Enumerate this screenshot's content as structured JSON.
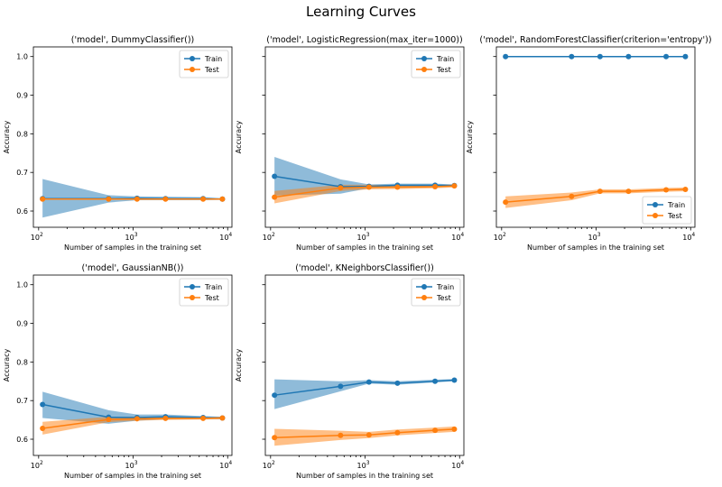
{
  "suptitle": "Learning Curves",
  "colors": {
    "train": "#1f77b4",
    "test": "#ff7f0e"
  },
  "chart_data": [
    {
      "type": "line",
      "title": "('model', DummyClassifier())",
      "xlabel": "Number of samples in the training set",
      "ylabel": "Accuracy",
      "xscale": "log",
      "xlim": [
        88,
        11100
      ],
      "ylim": [
        0.558,
        1.025
      ],
      "xticks": [
        100,
        1000,
        10000
      ],
      "xtick_labels": [
        "10",
        "10",
        "10"
      ],
      "xtick_exps": [
        "2",
        "3",
        "4"
      ],
      "yticks": [
        0.6,
        0.7,
        0.8,
        0.9,
        1.0
      ],
      "ytick_labels": [
        "0.6",
        "0.7",
        "0.8",
        "0.9",
        "1.0"
      ],
      "show_ytick_labels": true,
      "legend": "top-right",
      "legend_labels": [
        "Train",
        "Test"
      ],
      "x": [
        110,
        550,
        1100,
        2200,
        5500,
        8800
      ],
      "series": [
        {
          "name": "Train",
          "values": [
            0.632,
            0.632,
            0.633,
            0.632,
            0.632,
            0.631
          ],
          "lower": [
            0.583,
            0.622,
            0.628,
            0.628,
            0.628,
            0.629
          ],
          "upper": [
            0.683,
            0.641,
            0.638,
            0.637,
            0.636,
            0.633
          ]
        },
        {
          "name": "Test",
          "values": [
            0.631,
            0.631,
            0.631,
            0.631,
            0.631,
            0.631
          ],
          "lower": [
            0.63,
            0.63,
            0.63,
            0.63,
            0.63,
            0.63
          ],
          "upper": [
            0.632,
            0.632,
            0.632,
            0.632,
            0.632,
            0.632
          ]
        }
      ]
    },
    {
      "type": "line",
      "title": "('model', LogisticRegression(max_iter=1000))",
      "xlabel": "Number of samples in the training set",
      "ylabel": "Accuracy",
      "xscale": "log",
      "xlim": [
        88,
        11100
      ],
      "ylim": [
        0.558,
        1.025
      ],
      "xticks": [
        100,
        1000,
        10000
      ],
      "xtick_labels": [
        "10",
        "10",
        "10"
      ],
      "xtick_exps": [
        "2",
        "3",
        "4"
      ],
      "yticks": [
        0.6,
        0.7,
        0.8,
        0.9,
        1.0
      ],
      "ytick_labels": [
        "0.6",
        "0.7",
        "0.8",
        "0.9",
        "1.0"
      ],
      "show_ytick_labels": false,
      "legend": "top-right",
      "legend_labels": [
        "Train",
        "Test"
      ],
      "x": [
        110,
        550,
        1100,
        2200,
        5500,
        8800
      ],
      "series": [
        {
          "name": "Train",
          "values": [
            0.69,
            0.663,
            0.664,
            0.667,
            0.667,
            0.666
          ],
          "lower": [
            0.64,
            0.645,
            0.659,
            0.662,
            0.663,
            0.663
          ],
          "upper": [
            0.74,
            0.682,
            0.669,
            0.671,
            0.671,
            0.669
          ]
        },
        {
          "name": "Test",
          "values": [
            0.636,
            0.66,
            0.662,
            0.662,
            0.663,
            0.665
          ],
          "lower": [
            0.62,
            0.652,
            0.656,
            0.657,
            0.659,
            0.661
          ],
          "upper": [
            0.652,
            0.668,
            0.668,
            0.667,
            0.667,
            0.669
          ]
        }
      ]
    },
    {
      "type": "line",
      "title": "('model', RandomForestClassifier(criterion='entropy'))",
      "xlabel": "Number of samples in the training set",
      "ylabel": "Accuracy",
      "xscale": "log",
      "xlim": [
        88,
        11100
      ],
      "ylim": [
        0.558,
        1.025
      ],
      "xticks": [
        100,
        1000,
        10000
      ],
      "xtick_labels": [
        "10",
        "10",
        "10"
      ],
      "xtick_exps": [
        "2",
        "3",
        "4"
      ],
      "yticks": [
        0.6,
        0.7,
        0.8,
        0.9,
        1.0
      ],
      "ytick_labels": [
        "0.6",
        "0.7",
        "0.8",
        "0.9",
        "1.0"
      ],
      "show_ytick_labels": false,
      "legend": "bottom-right",
      "legend_labels": [
        "Train",
        "Test"
      ],
      "x": [
        110,
        550,
        1100,
        2200,
        5500,
        8800
      ],
      "series": [
        {
          "name": "Train",
          "values": [
            1.0,
            1.0,
            1.0,
            1.0,
            1.0,
            1.0
          ],
          "lower": [
            1.0,
            1.0,
            1.0,
            1.0,
            1.0,
            1.0
          ],
          "upper": [
            1.0,
            1.0,
            1.0,
            1.0,
            1.0,
            1.0
          ]
        },
        {
          "name": "Test",
          "values": [
            0.623,
            0.638,
            0.651,
            0.651,
            0.655,
            0.656
          ],
          "lower": [
            0.608,
            0.628,
            0.646,
            0.646,
            0.65,
            0.651
          ],
          "upper": [
            0.638,
            0.648,
            0.656,
            0.656,
            0.66,
            0.661
          ]
        }
      ]
    },
    {
      "type": "line",
      "title": "('model', GaussianNB())",
      "xlabel": "Number of samples in the training set",
      "ylabel": "Accuracy",
      "xscale": "log",
      "xlim": [
        88,
        11100
      ],
      "ylim": [
        0.558,
        1.025
      ],
      "xticks": [
        100,
        1000,
        10000
      ],
      "xtick_labels": [
        "10",
        "10",
        "10"
      ],
      "xtick_exps": [
        "2",
        "3",
        "4"
      ],
      "yticks": [
        0.6,
        0.7,
        0.8,
        0.9,
        1.0
      ],
      "ytick_labels": [
        "0.6",
        "0.7",
        "0.8",
        "0.9",
        "1.0"
      ],
      "show_ytick_labels": true,
      "legend": "top-right",
      "legend_labels": [
        "Train",
        "Test"
      ],
      "x": [
        110,
        550,
        1100,
        2200,
        5500,
        8800
      ],
      "series": [
        {
          "name": "Train",
          "values": [
            0.69,
            0.657,
            0.656,
            0.658,
            0.656,
            0.655
          ],
          "lower": [
            0.655,
            0.64,
            0.648,
            0.652,
            0.652,
            0.652
          ],
          "upper": [
            0.723,
            0.675,
            0.664,
            0.664,
            0.66,
            0.658
          ]
        },
        {
          "name": "Test",
          "values": [
            0.628,
            0.651,
            0.653,
            0.654,
            0.654,
            0.655
          ],
          "lower": [
            0.612,
            0.644,
            0.648,
            0.65,
            0.651,
            0.652
          ],
          "upper": [
            0.645,
            0.658,
            0.658,
            0.658,
            0.657,
            0.658
          ]
        }
      ]
    },
    {
      "type": "line",
      "title": "('model', KNeighborsClassifier())",
      "xlabel": "Number of samples in the training set",
      "ylabel": "Accuracy",
      "xscale": "log",
      "xlim": [
        88,
        11100
      ],
      "ylim": [
        0.558,
        1.025
      ],
      "xticks": [
        100,
        1000,
        10000
      ],
      "xtick_labels": [
        "10",
        "10",
        "10"
      ],
      "xtick_exps": [
        "2",
        "3",
        "4"
      ],
      "yticks": [
        0.6,
        0.7,
        0.8,
        0.9,
        1.0
      ],
      "ytick_labels": [
        "0.6",
        "0.7",
        "0.8",
        "0.9",
        "1.0"
      ],
      "show_ytick_labels": false,
      "legend": "top-right",
      "legend_labels": [
        "Train",
        "Test"
      ],
      "x": [
        110,
        550,
        1100,
        2200,
        5500,
        8800
      ],
      "series": [
        {
          "name": "Train",
          "values": [
            0.714,
            0.737,
            0.748,
            0.745,
            0.75,
            0.753
          ],
          "lower": [
            0.678,
            0.724,
            0.744,
            0.741,
            0.747,
            0.75
          ],
          "upper": [
            0.755,
            0.75,
            0.753,
            0.75,
            0.754,
            0.756
          ]
        },
        {
          "name": "Test",
          "values": [
            0.604,
            0.61,
            0.611,
            0.617,
            0.623,
            0.626
          ],
          "lower": [
            0.583,
            0.598,
            0.603,
            0.61,
            0.616,
            0.619
          ],
          "upper": [
            0.627,
            0.622,
            0.619,
            0.625,
            0.63,
            0.633
          ]
        }
      ]
    }
  ]
}
